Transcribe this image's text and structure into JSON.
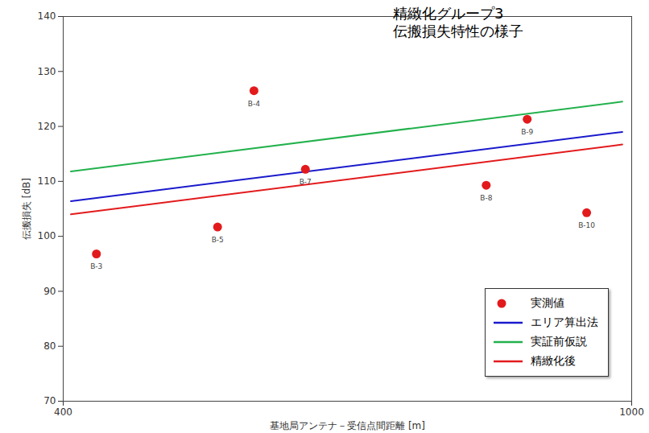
{
  "chart_data": {
    "type": "scatter",
    "title": "精緻化グループ3",
    "subtitle": "伝搬損失特性の様子",
    "x_label": "基地局アンテナ－受信点間距離 [m]",
    "y_label": "伝搬損失 [dB]",
    "log": "x",
    "xlim": [
      400,
      1000
    ],
    "xticks": [
      400,
      1000
    ],
    "ylim": [
      70,
      140
    ],
    "yticks": [
      70,
      80,
      90,
      100,
      110,
      120,
      130,
      140
    ],
    "grid": false,
    "legend": "bottom-right",
    "series": [
      {
        "name": "実測値",
        "type": "scatter",
        "color": "#e31a1c",
        "marker": "circle",
        "x": [
          422,
          513,
          544,
          591,
          791,
          845,
          930
        ],
        "values": [
          96.8,
          101.7,
          126.5,
          112.2,
          109.3,
          121.3,
          104.3
        ],
        "labels": [
          "B-3",
          "B-5",
          "B-4",
          "B-7",
          "B-8",
          "B-9",
          "B-10"
        ]
      },
      {
        "name": "エリア算出法",
        "type": "line",
        "color": "#1a1acc",
        "line_style": "solid",
        "x": [
          405,
          985
        ],
        "values": [
          106.4,
          119.0
        ]
      },
      {
        "name": "実証前仮説",
        "type": "line",
        "color": "#22b14c",
        "line_style": "solid",
        "x": [
          405,
          985
        ],
        "values": [
          111.8,
          124.5
        ]
      },
      {
        "name": "精緻化後",
        "type": "line",
        "color": "#e31a1c",
        "line_style": "solid",
        "x": [
          405,
          985
        ],
        "values": [
          104.0,
          116.7
        ]
      }
    ]
  }
}
